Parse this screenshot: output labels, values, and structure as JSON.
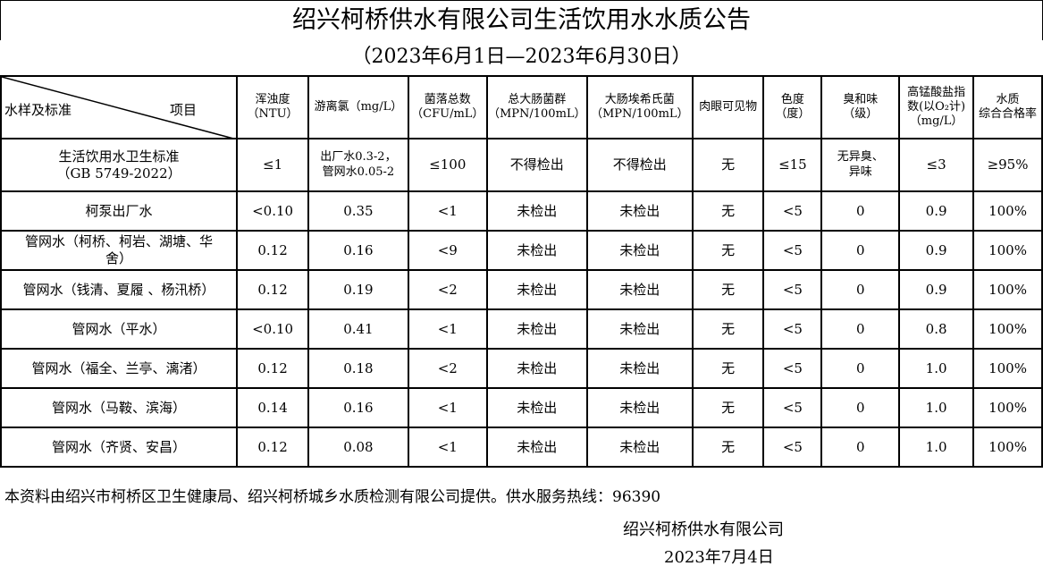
{
  "title": "绍兴柯桥供水有限公司生活饮用水水质公告",
  "period": "（2023年6月1日—2023年6月30日）",
  "header": {
    "corner_left": "水样及标准",
    "corner_right": "项目",
    "columns": [
      "浑浊度\n（NTU）",
      "游离氯（mg/L）",
      "菌落总数\n（CFU/mL）",
      "总大肠菌群\n（MPN/100mL）",
      "大肠埃希氏菌\n（MPN/100mL）",
      "肉眼可见物",
      "色度\n（度）",
      "臭和味\n（级）",
      "高锰酸盐指\n数(以O₂计)\n（mg/L）",
      "水质\n综合合格率"
    ]
  },
  "standard": {
    "label": "生活饮用水卫生标准\n（GB 5749-2022）",
    "values": [
      "≤1",
      "出厂水0.3-2，\n管网水0.05-2",
      "≤100",
      "不得检出",
      "不得检出",
      "无",
      "≤15",
      "无异臭、\n异味",
      "≤3",
      "≥95%"
    ]
  },
  "rows": [
    {
      "label": "柯泵出厂水",
      "values": [
        "<0.10",
        "0.35",
        "<1",
        "未检出",
        "未检出",
        "无",
        "<5",
        "0",
        "0.9",
        "100%"
      ]
    },
    {
      "label": "管网水（柯桥、柯岩、湖塘、华\n舍）",
      "values": [
        "0.12",
        "0.16",
        "<9",
        "未检出",
        "未检出",
        "无",
        "<5",
        "0",
        "0.9",
        "100%"
      ]
    },
    {
      "label": "管网水（钱清、夏履 、杨汛桥）",
      "values": [
        "0.12",
        "0.19",
        "<2",
        "未检出",
        "未检出",
        "无",
        "<5",
        "0",
        "0.9",
        "100%"
      ]
    },
    {
      "label": "管网水（平水）",
      "values": [
        "<0.10",
        "0.41",
        "<1",
        "未检出",
        "未检出",
        "无",
        "<5",
        "0",
        "0.8",
        "100%"
      ]
    },
    {
      "label": "管网水（福全、兰亭、漓渚）",
      "values": [
        "0.12",
        "0.18",
        "<2",
        "未检出",
        "未检出",
        "无",
        "<5",
        "0",
        "1.0",
        "100%"
      ]
    },
    {
      "label": "管网水（马鞍、滨海）",
      "values": [
        "0.14",
        "0.16",
        "<1",
        "未检出",
        "未检出",
        "无",
        "<5",
        "0",
        "1.0",
        "100%"
      ]
    },
    {
      "label": "管网水（齐贤、安昌）",
      "values": [
        "0.12",
        "0.08",
        "<1",
        "未检出",
        "未检出",
        "无",
        "<5",
        "0",
        "1.0",
        "100%"
      ]
    }
  ],
  "footer": {
    "source": "本资料由绍兴市柯桥区卫生健康局、绍兴柯桥城乡水质检测有限公司提供。供水服务热线：96390",
    "org": "绍兴柯桥供水有限公司",
    "date": "2023年7月4日"
  }
}
